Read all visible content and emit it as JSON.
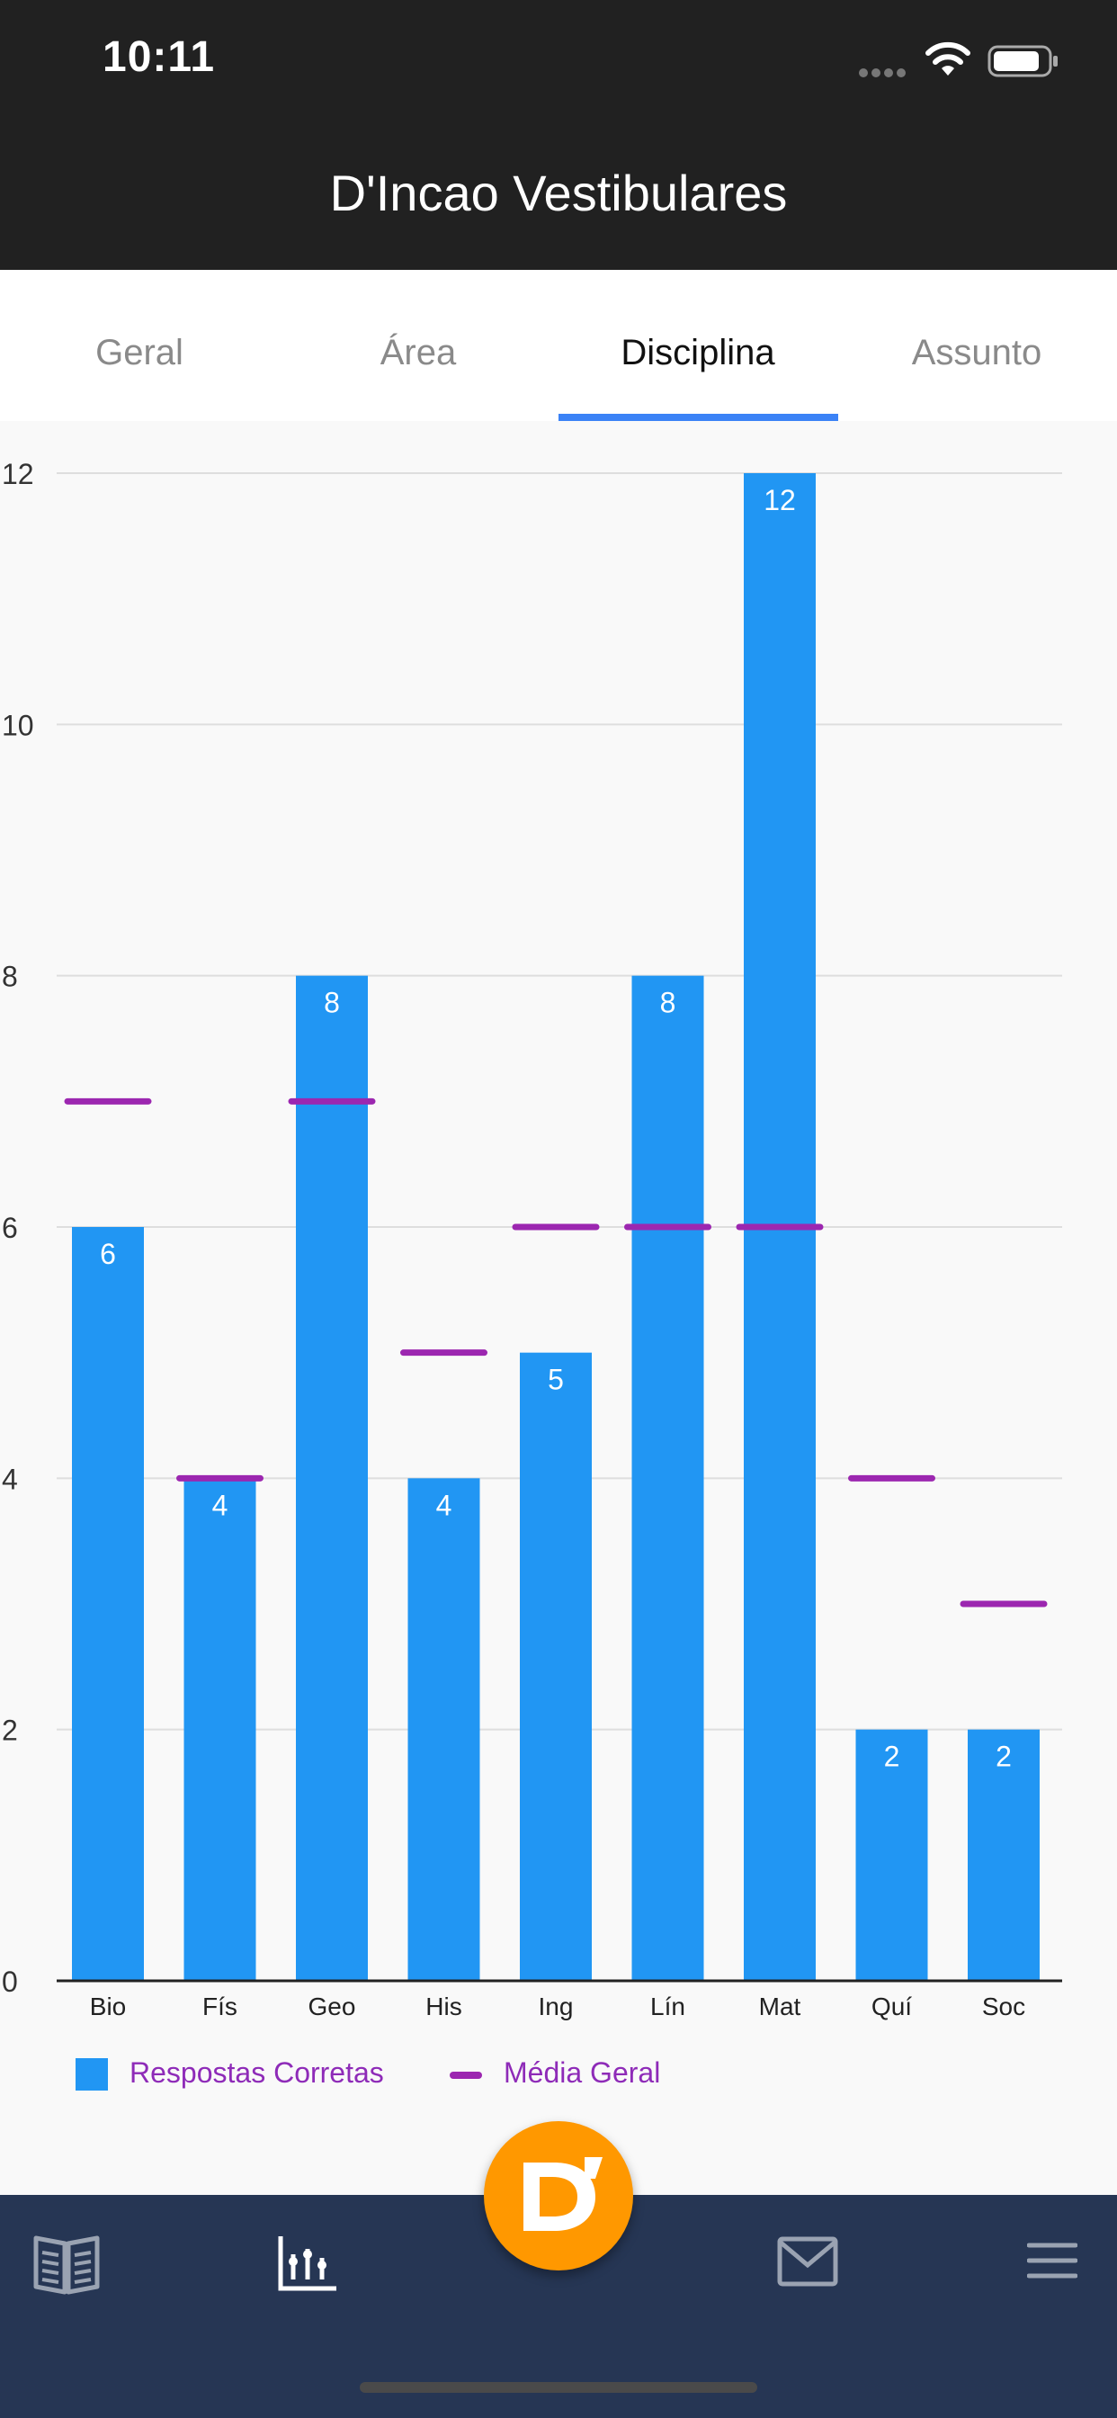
{
  "status_bar": {
    "time": "10:11"
  },
  "header": {
    "title": "D'Incao Vestibulares"
  },
  "tabs": [
    {
      "label": "Geral",
      "active": false
    },
    {
      "label": "Área",
      "active": false
    },
    {
      "label": "Disciplina",
      "active": true
    },
    {
      "label": "Assunto",
      "active": false
    }
  ],
  "legend": {
    "bars": "Respostas Corretas",
    "line": "Média Geral"
  },
  "colors": {
    "bar": "#2196f3",
    "average": "#9c27b0",
    "tab_indicator": "#3b82f6",
    "fab": "#ff9800",
    "nav": "#263654"
  },
  "chart_data": {
    "type": "bar",
    "categories": [
      "Bio",
      "Fís",
      "Geo",
      "His",
      "Ing",
      "Lín",
      "Mat",
      "Quí",
      "Soc"
    ],
    "series": [
      {
        "name": "Respostas Corretas",
        "values": [
          6,
          4,
          8,
          4,
          5,
          8,
          12,
          2,
          2
        ]
      },
      {
        "name": "Média Geral",
        "values": [
          7,
          4,
          7,
          5,
          6,
          6,
          6,
          4,
          3
        ]
      }
    ],
    "ylim": [
      0,
      12
    ],
    "yticks": [
      0,
      2,
      4,
      6,
      8,
      10,
      12
    ],
    "grid": true,
    "legend_position": "bottom-left"
  },
  "nav": {
    "items": [
      {
        "icon": "book-icon"
      },
      {
        "icon": "chart-icon"
      },
      {
        "icon": "mail-icon"
      },
      {
        "icon": "menu-icon"
      }
    ],
    "fab_icon": "dincao-logo-icon"
  }
}
